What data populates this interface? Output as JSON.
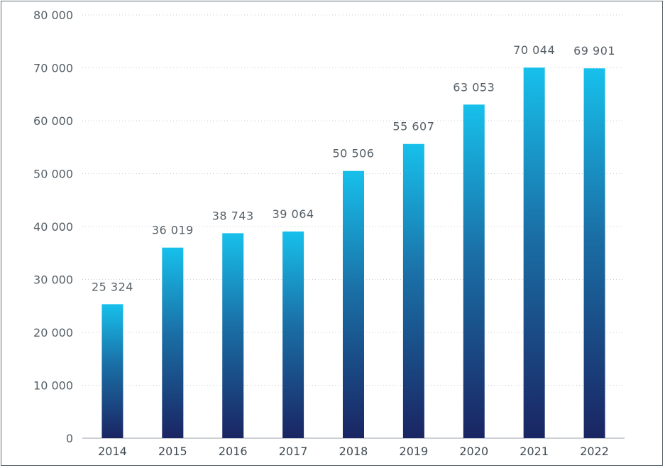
{
  "chart_data": {
    "type": "bar",
    "title": "",
    "xlabel": "",
    "ylabel": "",
    "categories": [
      "2014",
      "2015",
      "2016",
      "2017",
      "2018",
      "2019",
      "2020",
      "2021",
      "2022"
    ],
    "values": [
      25324,
      36019,
      38743,
      39064,
      50506,
      55607,
      63053,
      70044,
      69901
    ],
    "value_labels": [
      "25 324",
      "36 019",
      "38 743",
      "39 064",
      "50 506",
      "55 607",
      "63 053",
      "70 044",
      "69 901"
    ],
    "ylim": [
      0,
      80000
    ],
    "yticks": [
      0,
      10000,
      20000,
      30000,
      40000,
      50000,
      60000,
      70000,
      80000
    ],
    "ytick_labels": [
      "0",
      "10 000",
      "20 000",
      "30 000",
      "40 000",
      "50 000",
      "60 000",
      "70 000",
      "80 000"
    ],
    "grid": true,
    "legend": "none",
    "colors": {
      "bar_top": "#17c0eb",
      "bar_mid": "#1a6fa6",
      "bar_bottom": "#1a2563",
      "grid": "#c9ced2",
      "axis": "#9aa2a8"
    }
  }
}
